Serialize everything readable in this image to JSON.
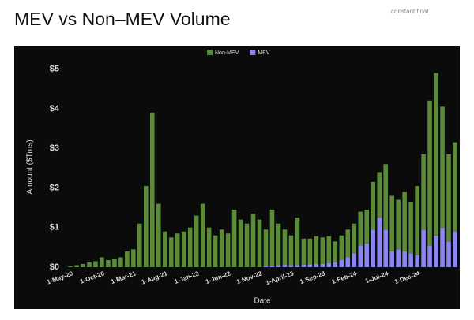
{
  "note_text": "constant float",
  "chart_data": {
    "type": "stacked-bar",
    "title": "MEV vs Non–MEV Volume",
    "xlabel": "Date",
    "ylabel": "Amount ($Trns)",
    "categories": [
      "1-May-20",
      null,
      null,
      null,
      null,
      "1-Oct-20",
      null,
      null,
      null,
      null,
      "1-Mar-21",
      null,
      null,
      null,
      null,
      "1-Aug-21",
      null,
      null,
      null,
      null,
      "1-Jan-22",
      null,
      null,
      null,
      null,
      "1-Jun-22",
      null,
      null,
      null,
      null,
      "1-Nov-22",
      null,
      null,
      null,
      null,
      "1-April-23",
      null,
      null,
      null,
      null,
      "1-Sep-23",
      null,
      null,
      null,
      null,
      "1-Feb-24",
      null,
      null,
      null,
      null,
      "1-Jul-24",
      null,
      null,
      null,
      null,
      "1-Dec-24",
      null,
      null,
      null,
      null,
      null,
      null
    ],
    "series": [
      {
        "name": "MEV",
        "color": "#8b86f0",
        "values": [
          0,
          0,
          0,
          0,
          0,
          0,
          0,
          0,
          0,
          0,
          0,
          0,
          0,
          0,
          0,
          0,
          0,
          0,
          0,
          0,
          0,
          0,
          0,
          0,
          0,
          0,
          0,
          0,
          0,
          0,
          0,
          0.03,
          0.04,
          0.05,
          0.06,
          0.05,
          0.05,
          0.06,
          0.07,
          0.08,
          0.08,
          0.1,
          0.12,
          0.18,
          0.25,
          0.35,
          0.55,
          0.6,
          0.95,
          1.25,
          0.95,
          0.4,
          0.45,
          0.4,
          0.35,
          0.3,
          0.95,
          0.55,
          0.8,
          1.0,
          0.65,
          0.9
        ]
      },
      {
        "name": "Non-MEV",
        "color": "#5a8a3a",
        "values": [
          0.02,
          0.05,
          0.08,
          0.12,
          0.15,
          0.25,
          0.18,
          0.22,
          0.25,
          0.4,
          0.45,
          1.1,
          2.05,
          3.9,
          1.6,
          0.9,
          0.75,
          0.85,
          0.9,
          1.0,
          1.3,
          1.6,
          1.0,
          0.8,
          0.95,
          0.85,
          1.45,
          1.2,
          1.1,
          1.35,
          1.2,
          0.92,
          1.41,
          1.05,
          0.89,
          0.75,
          1.2,
          0.66,
          0.65,
          0.7,
          0.67,
          0.68,
          0.53,
          0.62,
          0.7,
          0.75,
          0.85,
          0.85,
          1.2,
          1.15,
          1.65,
          1.4,
          1.25,
          1.5,
          1.3,
          1.75,
          1.9,
          3.65,
          4.1,
          3.05,
          2.2,
          2.25
        ]
      }
    ],
    "ylim": [
      0,
      5.25
    ],
    "yticks": [
      {
        "value": 0,
        "label": "$0"
      },
      {
        "value": 1,
        "label": "$1"
      },
      {
        "value": 2,
        "label": "$2"
      },
      {
        "value": 3,
        "label": "$3"
      },
      {
        "value": 4,
        "label": "$4"
      },
      {
        "value": 5,
        "label": "$5"
      }
    ],
    "legend": "top",
    "grid": false
  }
}
